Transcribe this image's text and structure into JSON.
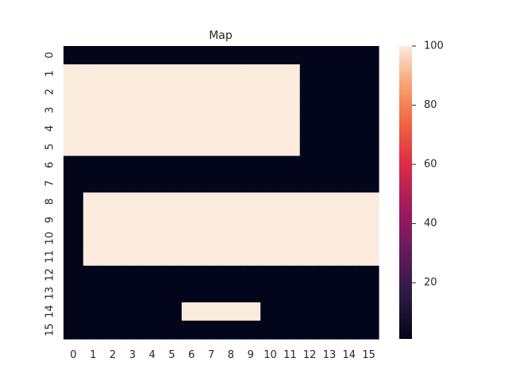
{
  "chart_data": {
    "type": "heatmap",
    "title": "Map",
    "xlabel": "",
    "ylabel": "",
    "x_ticks": [
      "0",
      "1",
      "2",
      "3",
      "4",
      "5",
      "6",
      "7",
      "8",
      "9",
      "10",
      "11",
      "12",
      "13",
      "14",
      "15"
    ],
    "y_ticks": [
      "0",
      "1",
      "2",
      "3",
      "4",
      "5",
      "6",
      "7",
      "8",
      "9",
      "10",
      "11",
      "12",
      "13",
      "14",
      "15"
    ],
    "matrix": [
      [
        1,
        1,
        1,
        1,
        1,
        1,
        1,
        1,
        1,
        1,
        1,
        1,
        1,
        1,
        1,
        1
      ],
      [
        100,
        100,
        100,
        100,
        100,
        100,
        100,
        100,
        100,
        100,
        100,
        100,
        1,
        1,
        1,
        1
      ],
      [
        100,
        100,
        100,
        100,
        100,
        100,
        100,
        100,
        100,
        100,
        100,
        100,
        1,
        1,
        1,
        1
      ],
      [
        100,
        100,
        100,
        100,
        100,
        100,
        100,
        100,
        100,
        100,
        100,
        100,
        1,
        1,
        1,
        1
      ],
      [
        100,
        100,
        100,
        100,
        100,
        100,
        100,
        100,
        100,
        100,
        100,
        100,
        1,
        1,
        1,
        1
      ],
      [
        100,
        100,
        100,
        100,
        100,
        100,
        100,
        100,
        100,
        100,
        100,
        100,
        1,
        1,
        1,
        1
      ],
      [
        1,
        1,
        1,
        1,
        1,
        1,
        1,
        1,
        1,
        1,
        1,
        1,
        1,
        1,
        1,
        1
      ],
      [
        1,
        1,
        1,
        1,
        1,
        1,
        1,
        1,
        1,
        1,
        1,
        1,
        1,
        1,
        1,
        1
      ],
      [
        1,
        100,
        100,
        100,
        100,
        100,
        100,
        100,
        100,
        100,
        100,
        100,
        100,
        100,
        100,
        100
      ],
      [
        1,
        100,
        100,
        100,
        100,
        100,
        100,
        100,
        100,
        100,
        100,
        100,
        100,
        100,
        100,
        100
      ],
      [
        1,
        100,
        100,
        100,
        100,
        100,
        100,
        100,
        100,
        100,
        100,
        100,
        100,
        100,
        100,
        100
      ],
      [
        1,
        100,
        100,
        100,
        100,
        100,
        100,
        100,
        100,
        100,
        100,
        100,
        100,
        100,
        100,
        100
      ],
      [
        1,
        1,
        1,
        1,
        1,
        1,
        1,
        1,
        1,
        1,
        1,
        1,
        1,
        1,
        1,
        1
      ],
      [
        1,
        1,
        1,
        1,
        1,
        1,
        1,
        1,
        1,
        1,
        1,
        1,
        1,
        1,
        1,
        1
      ],
      [
        1,
        1,
        1,
        1,
        1,
        1,
        100,
        100,
        100,
        100,
        1,
        1,
        1,
        1,
        1,
        1
      ],
      [
        1,
        1,
        1,
        1,
        1,
        1,
        1,
        1,
        1,
        1,
        1,
        1,
        1,
        1,
        1,
        1
      ]
    ],
    "value_range": [
      1,
      100
    ],
    "colorbar": {
      "ticks": [
        "20",
        "40",
        "60",
        "80",
        "100"
      ],
      "tick_values": [
        20,
        40,
        60,
        80,
        100
      ]
    },
    "colormap": "rocket",
    "colors": {
      "low": "#03051a",
      "high": "#faebdd"
    },
    "grid": false,
    "legend": "none"
  }
}
